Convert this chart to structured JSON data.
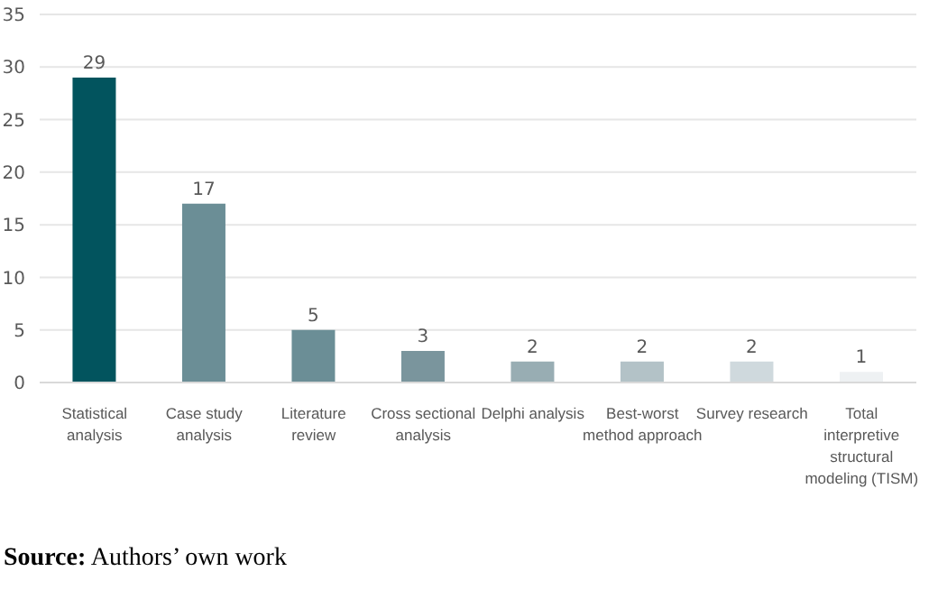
{
  "chart_data": {
    "type": "bar",
    "categories": [
      "Statistical analysis",
      "Case study analysis",
      "Literature review",
      "Cross sectional analysis",
      "Delphi analysis",
      "Best-worst method approach",
      "Survey research",
      "Total interpretive structural modeling (TISM)"
    ],
    "values": [
      29,
      17,
      5,
      3,
      2,
      2,
      2,
      1
    ],
    "colors": [
      "#02545e",
      "#6b8e96",
      "#6b8e96",
      "#7a959d",
      "#98adb3",
      "#b3c2c7",
      "#cfd9dd",
      "#eef1f3"
    ],
    "ylim": [
      0,
      35
    ],
    "yticks": [
      0,
      5,
      10,
      15,
      20,
      25,
      30,
      35
    ],
    "grid": "y",
    "data_labels": true,
    "annotations": [
      "Source: Authors’ own work"
    ]
  }
}
